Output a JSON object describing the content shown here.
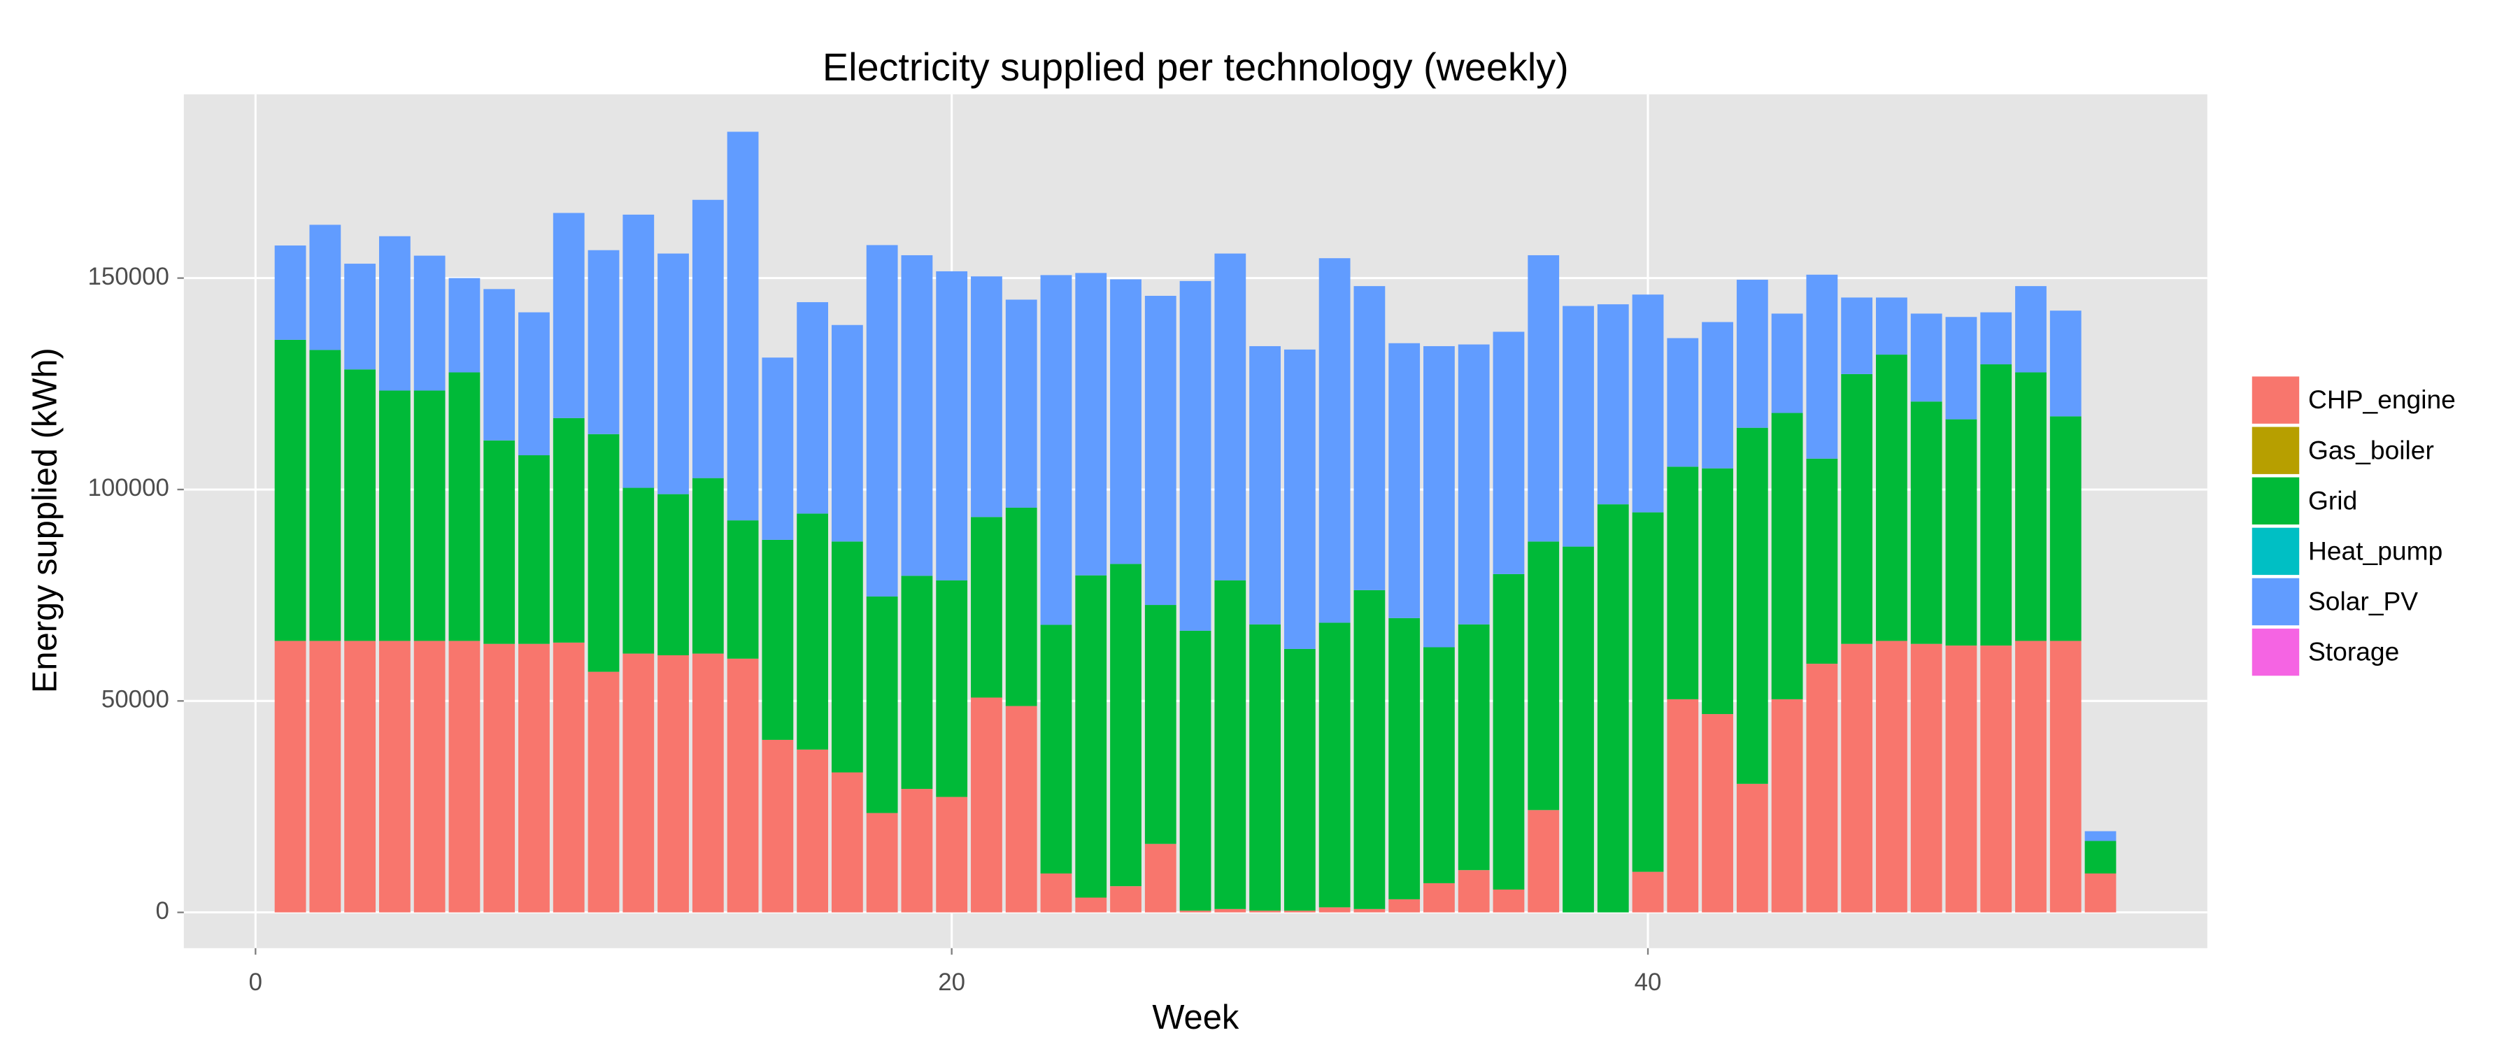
{
  "chart_data": {
    "type": "stacked_bar",
    "title": "Electricity supplied per technology (weekly)",
    "xlabel": "Week",
    "ylabel": "Energy supplied (kWh)",
    "x": [
      1,
      2,
      3,
      4,
      5,
      6,
      7,
      8,
      9,
      10,
      11,
      12,
      13,
      14,
      15,
      16,
      17,
      18,
      19,
      20,
      21,
      22,
      23,
      24,
      25,
      26,
      27,
      28,
      29,
      30,
      31,
      32,
      33,
      34,
      35,
      36,
      37,
      38,
      39,
      40,
      41,
      42,
      43,
      44,
      45,
      46,
      47,
      48,
      49,
      50,
      51,
      52,
      53
    ],
    "xlim": [
      -2.06,
      56.07
    ],
    "xticks": [
      0,
      20,
      40
    ],
    "ylim": [
      -8460,
      193450
    ],
    "yticks": [
      0,
      50000,
      100000,
      150000
    ],
    "grid": true,
    "legend": "right",
    "series": [
      {
        "name": "CHP_engine",
        "color": "#F8766D",
        "values": [
          64200,
          64200,
          64200,
          64200,
          64200,
          64200,
          63500,
          63500,
          63800,
          56900,
          61200,
          60800,
          61200,
          60000,
          40800,
          38500,
          33100,
          23500,
          29200,
          27300,
          50800,
          48800,
          9200,
          3500,
          6200,
          16200,
          400,
          800,
          400,
          400,
          1200,
          800,
          3100,
          6900,
          10000,
          5400,
          24200,
          0,
          0,
          9600,
          50400,
          46900,
          30400,
          50400,
          58800,
          63500,
          64200,
          63500,
          63100,
          63100,
          64200,
          64200,
          9200
        ]
      },
      {
        "name": "Gas_boiler",
        "color": "#B79F00",
        "values": [
          0,
          0,
          0,
          0,
          0,
          0,
          0,
          0,
          0,
          0,
          0,
          0,
          0,
          0,
          0,
          0,
          0,
          0,
          0,
          0,
          0,
          0,
          0,
          0,
          0,
          0,
          0,
          0,
          0,
          0,
          0,
          0,
          0,
          0,
          0,
          0,
          0,
          0,
          0,
          0,
          0,
          0,
          0,
          0,
          0,
          0,
          0,
          0,
          0,
          0,
          0,
          0,
          0
        ]
      },
      {
        "name": "Grid",
        "color": "#00BA38",
        "values": [
          71200,
          68800,
          64200,
          59200,
          59200,
          63500,
          48100,
          44600,
          53100,
          56200,
          39200,
          38100,
          41500,
          32700,
          47300,
          55800,
          54600,
          51200,
          50400,
          51200,
          42700,
          46900,
          58800,
          76200,
          76200,
          56500,
          66200,
          77700,
          67700,
          61900,
          67300,
          75400,
          66500,
          55800,
          58100,
          74600,
          63500,
          86500,
          96500,
          85000,
          55000,
          58100,
          84200,
          67700,
          48500,
          63800,
          67700,
          57300,
          53500,
          66500,
          63500,
          53100,
          7700
        ]
      },
      {
        "name": "Heat_pump",
        "color": "#00BFC4",
        "values": [
          0,
          0,
          0,
          0,
          0,
          0,
          0,
          0,
          0,
          0,
          0,
          0,
          0,
          0,
          0,
          0,
          0,
          0,
          0,
          0,
          0,
          0,
          0,
          0,
          0,
          0,
          0,
          0,
          0,
          0,
          0,
          0,
          0,
          0,
          0,
          0,
          0,
          0,
          0,
          0,
          0,
          0,
          0,
          0,
          0,
          0,
          0,
          0,
          0,
          0,
          0,
          0,
          0
        ]
      },
      {
        "name": "Solar_PV",
        "color": "#619CFF",
        "values": [
          22300,
          29600,
          25000,
          36500,
          31900,
          22300,
          35800,
          33800,
          48500,
          43500,
          64600,
          56900,
          65800,
          91900,
          43100,
          50000,
          51200,
          83100,
          75800,
          73100,
          56900,
          49200,
          82700,
          71500,
          67300,
          73100,
          82700,
          77300,
          65800,
          70800,
          86200,
          71900,
          65000,
          71200,
          66200,
          57300,
          67700,
          56900,
          47300,
          51500,
          30400,
          34600,
          35000,
          23500,
          43500,
          18100,
          13500,
          20800,
          24200,
          12300,
          20400,
          25000,
          2300
        ]
      },
      {
        "name": "Storage",
        "color": "#F564E3",
        "values": [
          0,
          0,
          0,
          0,
          0,
          0,
          0,
          0,
          0,
          0,
          0,
          0,
          0,
          0,
          0,
          0,
          0,
          0,
          0,
          0,
          0,
          0,
          0,
          0,
          0,
          0,
          0,
          0,
          0,
          0,
          0,
          0,
          0,
          0,
          0,
          0,
          0,
          0,
          0,
          0,
          0,
          0,
          0,
          0,
          0,
          0,
          0,
          0,
          0,
          0,
          0,
          0,
          0
        ]
      }
    ]
  }
}
